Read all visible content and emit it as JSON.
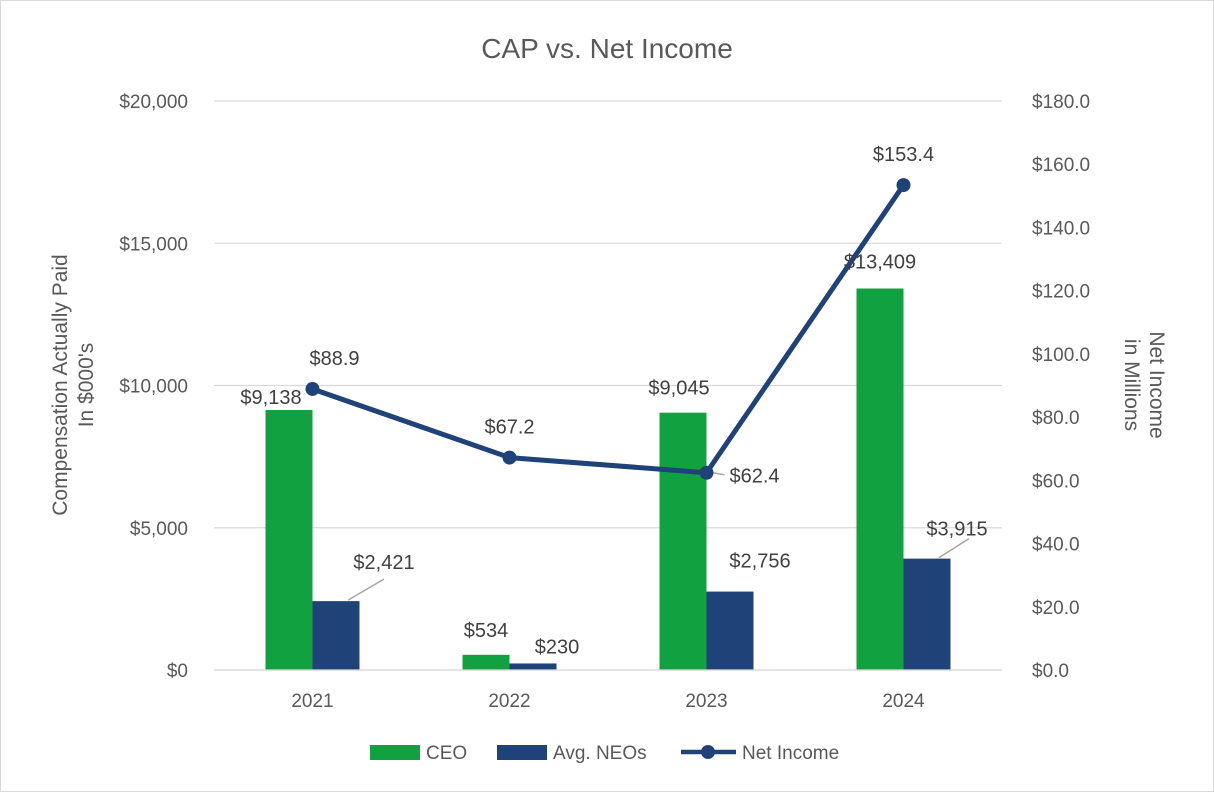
{
  "chart_data": {
    "type": "bar",
    "title": "CAP vs. Net Income",
    "categories": [
      "2021",
      "2022",
      "2023",
      "2024"
    ],
    "series": [
      {
        "name": "CEO",
        "type": "bar",
        "axis": "left",
        "values": [
          9138,
          534,
          9045,
          13409
        ],
        "labels": [
          "$9,138",
          "$534",
          "$9,045",
          "$13,409"
        ],
        "color": "#12a140"
      },
      {
        "name": "Avg. NEOs",
        "type": "bar",
        "axis": "left",
        "values": [
          2421,
          230,
          2756,
          3915
        ],
        "labels": [
          "$2,421",
          "$230",
          "$2,756",
          "$3,915"
        ],
        "color": "#1f4279"
      },
      {
        "name": "Net Income",
        "type": "line",
        "axis": "right",
        "values": [
          88.9,
          67.2,
          62.4,
          153.4
        ],
        "labels": [
          "$88.9",
          "$67.2",
          "$62.4",
          "$153.4"
        ],
        "color": "#1f4279"
      }
    ],
    "ylabel_left": [
      "Compensation Actually Paid",
      "In $000's"
    ],
    "ylabel_right": [
      "Net Income",
      "in Millions"
    ],
    "ylim_left": [
      0,
      20000
    ],
    "ylim_right": [
      0,
      180
    ],
    "yticks_left": [
      "$0",
      "$5,000",
      "$10,000",
      "$15,000",
      "$20,000"
    ],
    "yticks_right": [
      "$0.0",
      "$20.0",
      "$40.0",
      "$60.0",
      "$80.0",
      "$100.0",
      "$120.0",
      "$140.0",
      "$160.0",
      "$180.0"
    ],
    "grid": true,
    "legend": "bottom-center"
  },
  "colors": {
    "text": "#595959",
    "label": "#404040",
    "grid": "#d9d9d9",
    "leader": "#a6a6a6"
  }
}
